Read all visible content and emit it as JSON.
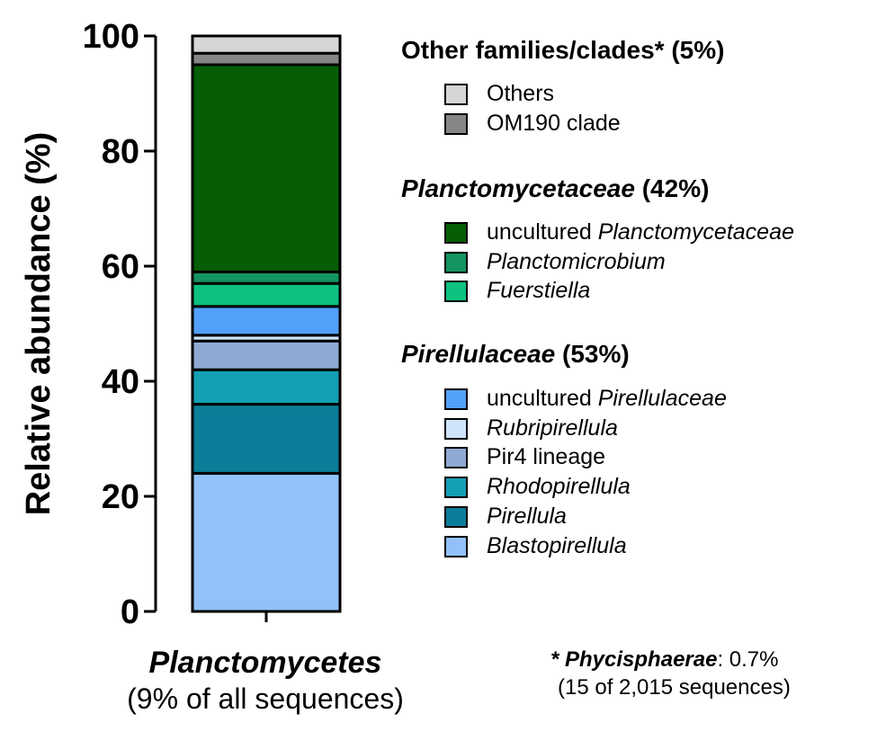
{
  "chart_data": {
    "type": "bar",
    "stacked": true,
    "categories": [
      "Planctomycetes"
    ],
    "category_subtitle": "(9% of all sequences)",
    "ylabel": "Relative abundance (%)",
    "ylim": [
      0,
      100
    ],
    "yticks": [
      "0",
      "20",
      "40",
      "60",
      "80",
      "100"
    ],
    "series": [
      {
        "name": "Blastopirellula",
        "value": 24,
        "color": "#92c1fa",
        "group": "Pirellulaceae"
      },
      {
        "name": "Pirellula",
        "value": 12,
        "color": "#0b7e99",
        "group": "Pirellulaceae"
      },
      {
        "name": "Rhodopirellula",
        "value": 6,
        "color": "#139fb4",
        "group": "Pirellulaceae"
      },
      {
        "name": "Pir4 lineage",
        "value": 5,
        "color": "#8eaad3",
        "group": "Pirellulaceae"
      },
      {
        "name": "Rubripirellula",
        "value": 1,
        "color": "#cfe3fb",
        "group": "Pirellulaceae"
      },
      {
        "name": "uncultured Pirellulaceae",
        "value": 5,
        "color": "#53a1fb",
        "group": "Pirellulaceae"
      },
      {
        "name": "Fuerstiella",
        "value": 4,
        "color": "#0dc17f",
        "group": "Planctomycetaceae"
      },
      {
        "name": "Planctomicrobium",
        "value": 2,
        "color": "#139460",
        "group": "Planctomycetaceae"
      },
      {
        "name": "uncultured Planctomycetaceae",
        "value": 36,
        "color": "#055d06",
        "group": "Planctomycetaceae"
      },
      {
        "name": "OM190 clade",
        "value": 2,
        "color": "#868686",
        "group": "Other families/clades"
      },
      {
        "name": "Others",
        "value": 3,
        "color": "#d6d6d6",
        "group": "Other families/clades"
      }
    ]
  },
  "legend": {
    "groups": [
      {
        "title": "Other families/clades*",
        "title_italic": false,
        "pct": "(5%)",
        "items": [
          {
            "prefix": "",
            "name": "Others",
            "italic": false,
            "color": "#d6d6d6"
          },
          {
            "prefix": "",
            "name": "OM190 clade",
            "italic": false,
            "color": "#868686"
          }
        ]
      },
      {
        "title": "Planctomycetaceae",
        "title_italic": true,
        "pct": "(42%)",
        "items": [
          {
            "prefix": "uncultured ",
            "name": "Planctomycetaceae",
            "italic": true,
            "color": "#055d06"
          },
          {
            "prefix": "",
            "name": "Planctomicrobium",
            "italic": true,
            "color": "#139460"
          },
          {
            "prefix": "",
            "name": "Fuerstiella",
            "italic": true,
            "color": "#0dc17f"
          }
        ]
      },
      {
        "title": "Pirellulaceae",
        "title_italic": true,
        "pct": "(53%)",
        "items": [
          {
            "prefix": "uncultured ",
            "name": "Pirellulaceae",
            "italic": true,
            "color": "#53a1fb"
          },
          {
            "prefix": "",
            "name": "Rubripirellula",
            "italic": true,
            "color": "#cfe3fb"
          },
          {
            "prefix": "",
            "name": "Pir4 lineage",
            "italic": false,
            "color": "#8eaad3"
          },
          {
            "prefix": "",
            "name": "Rhodopirellula",
            "italic": true,
            "color": "#139fb4"
          },
          {
            "prefix": "",
            "name": "Pirellula",
            "italic": true,
            "color": "#0b7e99"
          },
          {
            "prefix": "",
            "name": "Blastopirellula",
            "italic": true,
            "color": "#92c1fa"
          }
        ]
      }
    ]
  },
  "footnote": {
    "marker": "* ",
    "name": "Phycisphaerae",
    "value": ":  0.7%",
    "detail": "(15 of 2,015 sequences)"
  }
}
